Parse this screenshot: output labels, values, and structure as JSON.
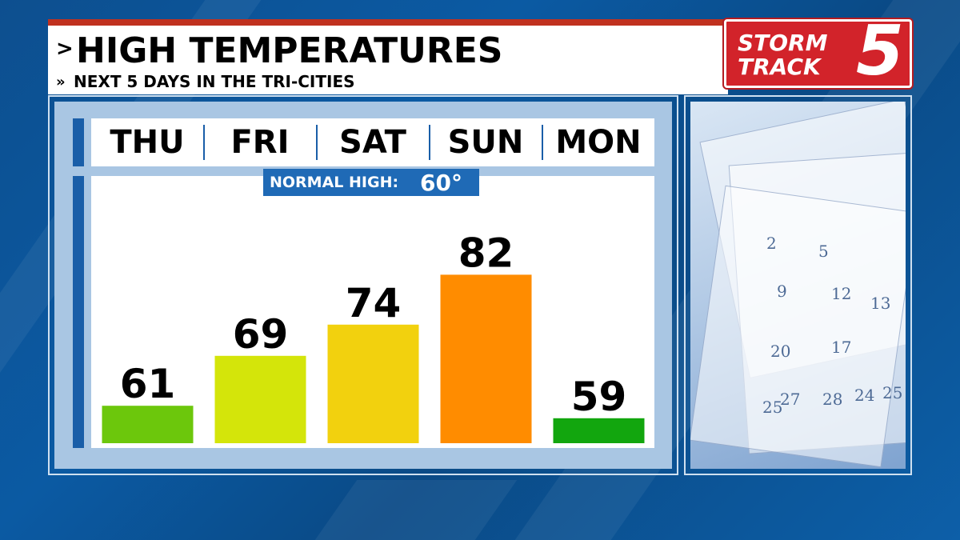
{
  "header": {
    "title": "HIGH TEMPERATURES",
    "subtitle": "NEXT 5 DAYS IN THE TRI-CITIES"
  },
  "logo": {
    "line1": "STORM",
    "line2": "TRACK",
    "number": "5"
  },
  "normal": {
    "label": "NORMAL HIGH:",
    "value": "60°"
  },
  "colors": {
    "red_accent": "#c0311f",
    "header_blue": "#1f6ab6",
    "bars": [
      "#6cc70c",
      "#d4e50a",
      "#f2d10e",
      "#ff8c00",
      "#12a60e"
    ]
  },
  "photo": {
    "numbers": [
      "2",
      "5",
      "9",
      "12",
      "13",
      "17",
      "20",
      "25",
      "27",
      "28",
      "24",
      "25"
    ]
  },
  "chart_data": {
    "type": "bar",
    "categories": [
      "THU",
      "FRI",
      "SAT",
      "SUN",
      "MON"
    ],
    "values": [
      61,
      69,
      74,
      82,
      59
    ],
    "title": "HIGH TEMPERATURES",
    "reference_line": {
      "label": "NORMAL HIGH:",
      "value": 60
    },
    "grid": false,
    "legend": "none"
  }
}
